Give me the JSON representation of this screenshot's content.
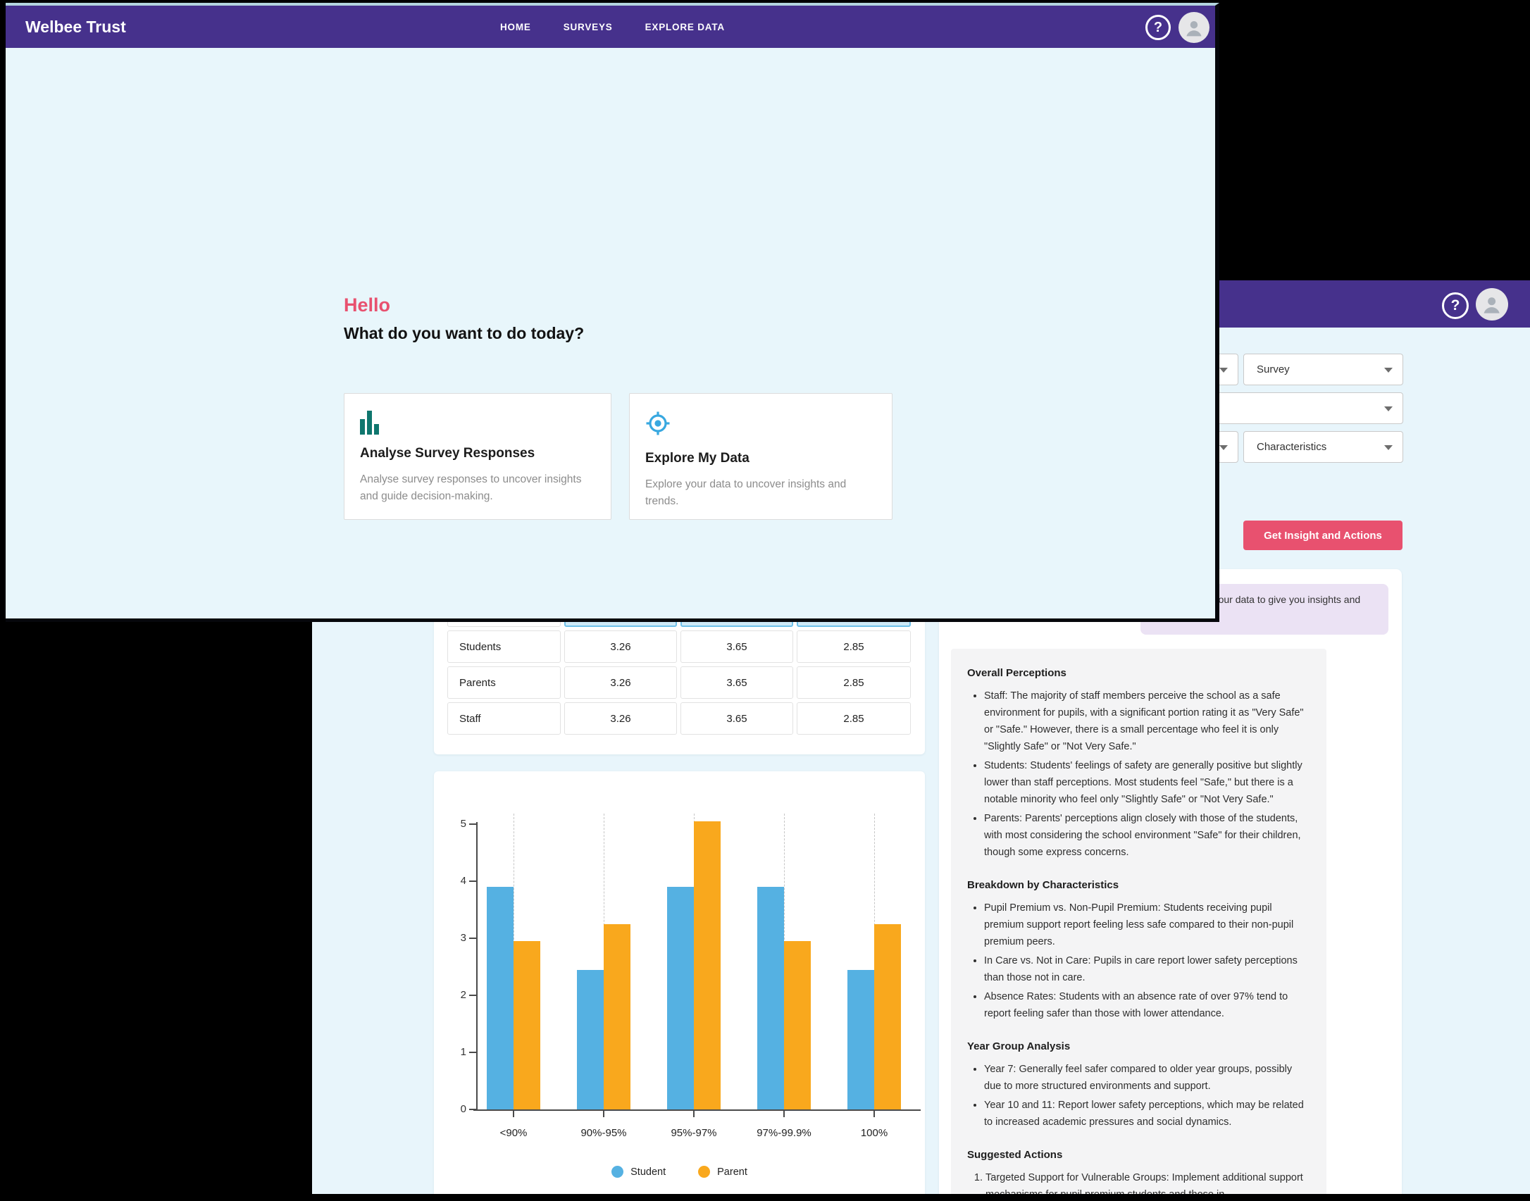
{
  "colors": {
    "header_purple": "#46318c",
    "accent_pink": "#e8516f",
    "page_light_blue": "#e8f5fb",
    "student_blue": "#55b1e2",
    "parent_orange": "#f9a81d",
    "banner_purple": "#ebe2f4",
    "table_highlight_blue": "#cde9f7"
  },
  "front_window": {
    "brand": "Welbee Trust",
    "nav": [
      "HOME",
      "SURVEYS",
      "EXPLORE DATA"
    ],
    "greeting": "Hello",
    "question": "What do you want to do today?",
    "cards": [
      {
        "icon": "bar-chart-icon",
        "title": "Analyse Survey Responses",
        "description": "Analyse survey responses to uncover insights and guide decision-making."
      },
      {
        "icon": "target-icon",
        "title": "Explore My Data",
        "description": "Explore your data to uncover insights and trends."
      }
    ]
  },
  "back_window": {
    "filters": [
      {
        "value": "Survey"
      },
      {
        "value": ""
      },
      {
        "value": "Characteristics"
      }
    ],
    "insight_button_label": "Get Insight and Actions",
    "insight_banner": "We analysed your data to give you insights and actions",
    "score_table": {
      "rows": [
        {
          "label": "Students",
          "values": [
            "3.26",
            "3.65",
            "2.85"
          ]
        },
        {
          "label": "Parents",
          "values": [
            "3.26",
            "3.65",
            "2.85"
          ]
        },
        {
          "label": "Staff",
          "values": [
            "3.26",
            "3.65",
            "2.85"
          ]
        }
      ]
    },
    "insight_sections": [
      {
        "heading": "Overall Perceptions",
        "list_type": "bullet",
        "items": [
          "Staff: The majority of staff members perceive the school as a safe environment for pupils, with a significant portion rating it as \"Very Safe\" or \"Safe.\" However, there is a small percentage who feel it is only \"Slightly Safe\" or \"Not Very Safe.\"",
          "Students: Students' feelings of safety are generally positive but slightly lower than staff perceptions. Most students feel \"Safe,\" but there is a notable minority who feel only \"Slightly Safe\" or \"Not Very Safe.\"",
          "Parents: Parents' perceptions align closely with those of the students, with most considering the school environment \"Safe\" for their children, though some express concerns."
        ]
      },
      {
        "heading": "Breakdown by Characteristics",
        "list_type": "bullet",
        "items": [
          "Pupil Premium vs. Non-Pupil Premium: Students receiving pupil premium support report feeling less safe compared to their non-pupil premium peers.",
          "In Care vs. Not in Care: Pupils in care report lower safety perceptions than those not in care.",
          "Absence Rates: Students with an absence rate of over 97% tend to report feeling safer than those with lower attendance."
        ]
      },
      {
        "heading": "Year Group Analysis",
        "list_type": "bullet",
        "items": [
          "Year 7: Generally feel safer compared to older year groups, possibly due to more structured environments and support.",
          "Year 10 and 11: Report lower safety perceptions, which may be related to increased academic pressures and social dynamics."
        ]
      },
      {
        "heading": "Suggested Actions",
        "list_type": "numbered",
        "items": [
          "Targeted Support for Vulnerable Groups: Implement additional support mechanisms for pupil premium students and those in"
        ]
      }
    ]
  },
  "chart_data": {
    "type": "bar",
    "categories": [
      "<90%",
      "90%-95%",
      "95%-97%",
      "97%-99.9%",
      "100%"
    ],
    "series": [
      {
        "name": "Student",
        "color": "#55b1e2",
        "values": [
          3.9,
          2.45,
          3.9,
          3.9,
          2.45
        ]
      },
      {
        "name": "Parent",
        "color": "#f9a81d",
        "values": [
          2.95,
          3.25,
          5.05,
          2.95,
          3.25
        ]
      }
    ],
    "ylim": [
      0,
      5
    ],
    "yticks": [
      0,
      1,
      2,
      3,
      4,
      5
    ],
    "grid": "vertical-dashed",
    "legend_position": "bottom"
  }
}
